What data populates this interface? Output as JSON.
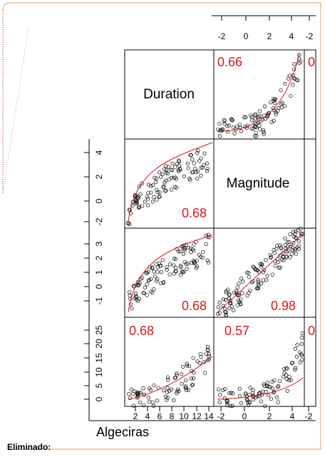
{
  "figure": {
    "diagonal_labels": [
      "Duration",
      "Magnitude"
    ],
    "correlations": [
      "0.66",
      "0",
      "0.68",
      "0.68",
      "0.98",
      "0.68",
      "0.57",
      "0"
    ],
    "top_axis_ticks": [
      "-2",
      "0",
      "2",
      "4",
      "-2"
    ],
    "left_axis_ticks": [
      [
        "4",
        "2",
        "0",
        "-2"
      ],
      [
        "3",
        "2",
        "1",
        "0",
        "-1"
      ],
      [
        "25",
        "20",
        "15",
        "10",
        "5",
        "0"
      ]
    ],
    "bottom_axis_ticks": [
      "2",
      "4",
      "6",
      "8",
      "10",
      "12",
      "14",
      "-2",
      "0",
      "2",
      "4",
      "-2"
    ],
    "caption": "Algeciras"
  },
  "revision_label": "Eliminado:"
}
